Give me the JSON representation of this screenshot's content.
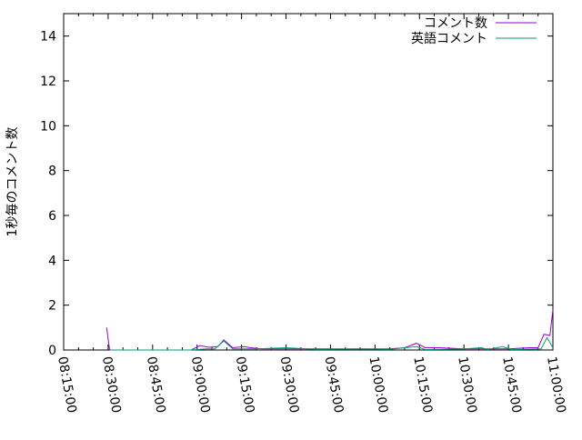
{
  "chart_data": {
    "type": "line",
    "title": "",
    "xlabel": "",
    "ylabel": "1秒毎のコメント数",
    "xlim": [
      "08:15:00",
      "11:00:00"
    ],
    "ylim": [
      0,
      15
    ],
    "grid": false,
    "legend_position": "top-right",
    "x_ticks": [
      "08:15:00",
      "08:30:00",
      "08:45:00",
      "09:00:00",
      "09:15:00",
      "09:30:00",
      "09:45:00",
      "10:00:00",
      "10:15:00",
      "10:30:00",
      "10:45:00",
      "11:00:00"
    ],
    "y_ticks": [
      "0",
      "2",
      "4",
      "6",
      "8",
      "10",
      "12",
      "14"
    ],
    "series": [
      {
        "name": "コメント数",
        "color": "#9400d3",
        "points": [
          [
            "08:29:30",
            1.0
          ],
          [
            "08:30:30",
            0
          ],
          [
            "08:45:00",
            0
          ],
          [
            "08:58:00",
            0
          ],
          [
            "09:01:00",
            0.2
          ],
          [
            "09:04:00",
            0.12
          ],
          [
            "09:07:00",
            0.15
          ],
          [
            "09:09:00",
            0.45
          ],
          [
            "09:12:00",
            0.1
          ],
          [
            "09:16:00",
            0.15
          ],
          [
            "09:18:00",
            0.1
          ],
          [
            "09:22:00",
            0.05
          ],
          [
            "09:30:00",
            0.05
          ],
          [
            "09:40:00",
            0.05
          ],
          [
            "09:50:00",
            0.05
          ],
          [
            "10:05:00",
            0.05
          ],
          [
            "10:10:00",
            0.1
          ],
          [
            "10:14:00",
            0.3
          ],
          [
            "10:17:00",
            0.1
          ],
          [
            "10:22:00",
            0.1
          ],
          [
            "10:30:00",
            0.05
          ],
          [
            "10:45:00",
            0.05
          ],
          [
            "10:52:00",
            0.1
          ],
          [
            "10:55:00",
            0.1
          ],
          [
            "10:57:00",
            0.7
          ],
          [
            "10:59:00",
            0.65
          ],
          [
            "11:00:00",
            1.8
          ]
        ]
      },
      {
        "name": "英語コメント",
        "color": "#009e73",
        "points": [
          [
            "08:31:00",
            0
          ],
          [
            "08:58:00",
            0
          ],
          [
            "09:03:00",
            0.05
          ],
          [
            "09:06:00",
            0.05
          ],
          [
            "09:09:00",
            0.4
          ],
          [
            "09:12:00",
            0.05
          ],
          [
            "09:20:00",
            0.05
          ],
          [
            "09:30:00",
            0.1
          ],
          [
            "09:40:00",
            0.03
          ],
          [
            "09:55:00",
            0.05
          ],
          [
            "10:05:00",
            0.03
          ],
          [
            "10:14:00",
            0.15
          ],
          [
            "10:17:00",
            0.02
          ],
          [
            "10:30:00",
            0.05
          ],
          [
            "10:36:00",
            0.1
          ],
          [
            "10:38:00",
            0.02
          ],
          [
            "10:43:00",
            0.15
          ],
          [
            "10:46:00",
            0.02
          ],
          [
            "10:56:00",
            0.05
          ],
          [
            "10:58:00",
            0.55
          ],
          [
            "11:00:00",
            0.1
          ]
        ]
      }
    ]
  }
}
